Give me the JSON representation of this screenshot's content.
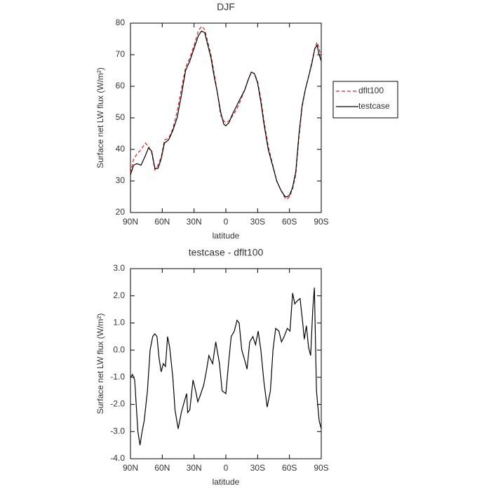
{
  "chart_data": [
    {
      "type": "line",
      "title": "DJF",
      "x_label": "latitude",
      "y_label": "Surface net LW flux (W/m²)",
      "x": [
        90,
        87,
        84,
        80,
        76,
        73,
        70,
        67,
        64,
        61,
        58,
        54,
        50,
        46,
        42,
        38,
        34,
        30,
        26,
        23,
        20,
        17,
        14,
        11,
        8,
        5,
        2,
        0,
        -3,
        -6,
        -9,
        -12,
        -15,
        -18,
        -21,
        -24,
        -27,
        -30,
        -33,
        -36,
        -40,
        -44,
        -48,
        -52,
        -56,
        -58,
        -60,
        -63,
        -66,
        -69,
        -72,
        -75,
        -78,
        -81,
        -84,
        -86,
        -88,
        -90
      ],
      "series": [
        {
          "name": "dflt100",
          "color": "#e02020",
          "dashed": true,
          "values": [
            32.5,
            37,
            38.5,
            40,
            42,
            41,
            39,
            33.5,
            35,
            37.5,
            43,
            43.5,
            46.5,
            52,
            59,
            66,
            69,
            73,
            77.5,
            79,
            78,
            74,
            70,
            64,
            58,
            51,
            49,
            48.5,
            49,
            50.5,
            52,
            54,
            56.5,
            59,
            62,
            64.5,
            64,
            61.5,
            56,
            49,
            41,
            35.5,
            30,
            27,
            24.5,
            24.3,
            25,
            27.5,
            32,
            44,
            53.5,
            59,
            63,
            67.5,
            72,
            74,
            72,
            69
          ]
        },
        {
          "name": "testcase",
          "color": "#000000",
          "dashed": false,
          "values": [
            32,
            35,
            35.5,
            35,
            38,
            40.5,
            39.5,
            34,
            34,
            37,
            42,
            43,
            46,
            50,
            57,
            65,
            68,
            72,
            76,
            77.5,
            77,
            73,
            69,
            63,
            58,
            52,
            48,
            47.5,
            48.5,
            51,
            53,
            55,
            57,
            59,
            62,
            64.5,
            64,
            61,
            55,
            48,
            40,
            35,
            30,
            27,
            25,
            25,
            25.5,
            28,
            33,
            45,
            54,
            59,
            63,
            67,
            72,
            73,
            70,
            68
          ]
        }
      ],
      "xlim": [
        90,
        -90
      ],
      "xticks": [
        {
          "value": 90,
          "label": "90N"
        },
        {
          "value": 60,
          "label": "60N"
        },
        {
          "value": 30,
          "label": "30N"
        },
        0,
        {
          "value": -30,
          "label": "30S"
        },
        {
          "value": -60,
          "label": "60S"
        },
        {
          "value": -90,
          "label": "90S"
        }
      ],
      "ylim": [
        20,
        80
      ],
      "yticks": [
        20,
        30,
        40,
        50,
        60,
        70,
        80
      ],
      "legend": "right"
    },
    {
      "type": "line",
      "title": "testcase - dflt100",
      "x_label": "latitude",
      "y_label": "Surface net LW flux (W/m²)",
      "x": [
        90,
        88,
        86,
        83,
        81,
        79,
        77,
        74,
        71.5,
        69,
        67,
        65,
        63,
        61,
        59,
        57,
        55,
        53,
        50,
        48,
        45,
        42,
        40,
        37,
        36,
        34,
        31,
        28.5,
        26.5,
        24.5,
        21,
        18.5,
        16,
        12.5,
        9.5,
        6,
        3.5,
        0,
        -2.5,
        -5,
        -8,
        -10.5,
        -12.5,
        -15,
        -18,
        -20,
        -22.5,
        -25.5,
        -28,
        -30.5,
        -33,
        -36,
        -39,
        -42,
        -44.5,
        -47,
        -50,
        -52.5,
        -55,
        -58,
        -60.5,
        -63,
        -65,
        -67,
        -70,
        -72.5,
        -74,
        -76,
        -78,
        -80,
        -82,
        -83.5,
        -85.5,
        -88,
        -90
      ],
      "series": [
        {
          "name": "testcase - dflt100",
          "color": "#000000",
          "dashed": false,
          "values": [
            -1.0,
            -0.9,
            -1.1,
            -3.0,
            -3.5,
            -3.0,
            -2.6,
            -1.5,
            0.0,
            0.5,
            0.6,
            0.5,
            -0.3,
            -0.8,
            -0.5,
            -0.6,
            0.5,
            0.1,
            -1.0,
            -2.2,
            -2.9,
            -2.3,
            -2.0,
            -1.6,
            -2.3,
            -2.2,
            -1.1,
            -1.5,
            -1.9,
            -1.7,
            -1.3,
            -0.8,
            -0.2,
            -0.5,
            0.3,
            -0.5,
            -1.5,
            -1.6,
            -0.5,
            0.5,
            0.7,
            1.1,
            1.0,
            0.0,
            -0.4,
            -0.7,
            0.3,
            0.5,
            0.2,
            0.7,
            0.0,
            -1.2,
            -2.1,
            -1.5,
            0.0,
            0.8,
            0.7,
            0.3,
            0.5,
            0.8,
            0.7,
            2.1,
            1.7,
            1.8,
            1.9,
            1.0,
            0.4,
            0.9,
            0.1,
            -0.2,
            1.5,
            2.3,
            -1.5,
            -2.6,
            -2.9
          ]
        }
      ],
      "xlim": [
        90,
        -90
      ],
      "xticks": [
        {
          "value": 90,
          "label": "90N"
        },
        {
          "value": 60,
          "label": "60N"
        },
        {
          "value": 30,
          "label": "30N"
        },
        0,
        {
          "value": -30,
          "label": "30S"
        },
        {
          "value": -60,
          "label": "60S"
        },
        {
          "value": -90,
          "label": "90S"
        }
      ],
      "ylim": [
        -4,
        3
      ],
      "yticks": [
        {
          "value": -4,
          "label": "-4.0"
        },
        {
          "value": -3,
          "label": "-3.0"
        },
        {
          "value": -2,
          "label": "-2.0"
        },
        {
          "value": -1,
          "label": "-1.0"
        },
        {
          "value": 0,
          "label": "0.0"
        },
        {
          "value": 1,
          "label": "1.0"
        },
        {
          "value": 2,
          "label": "2.0"
        },
        {
          "value": 3,
          "label": "3.0"
        }
      ]
    }
  ]
}
